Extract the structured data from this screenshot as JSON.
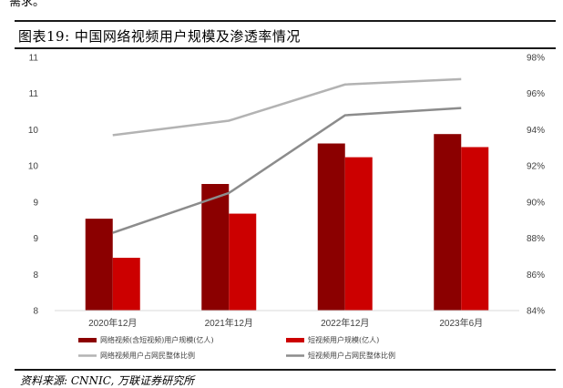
{
  "header": {
    "cut_text": "需求。",
    "title": "图表19: 中国网络视频用户规模及渗透率情况",
    "source": "资料来源: CNNIC, 万联证券研究所"
  },
  "colors": {
    "bar1": "#8b0000",
    "bar2": "#cc0000",
    "line1": "#b3b3b3",
    "line2": "#8c8c8c",
    "axis": "#d9d9d9"
  },
  "chart_data": {
    "type": "bar",
    "categories": [
      "2020年12月",
      "2021年12月",
      "2022年12月",
      "2023年6月"
    ],
    "left_axis_ticks": [
      "8",
      "8",
      "9",
      "9",
      "10",
      "10",
      "11",
      "11"
    ],
    "right_axis_ticks": [
      "84%",
      "86%",
      "88%",
      "90%",
      "92%",
      "94%",
      "96%",
      "98%"
    ],
    "ylim": [
      8,
      11.5
    ],
    "y2lim": [
      84,
      98
    ],
    "series": [
      {
        "name": "网络视频(含短视频)用户规模(亿人)",
        "kind": "bar",
        "axis": "left",
        "values": [
          9.27,
          9.75,
          10.31,
          10.44
        ]
      },
      {
        "name": "短视频用户规模(亿人)",
        "kind": "bar",
        "axis": "left",
        "values": [
          8.73,
          9.34,
          10.12,
          10.26
        ]
      },
      {
        "name": "网络视频用户占网民整体比例",
        "kind": "line",
        "axis": "right",
        "values": [
          93.7,
          94.5,
          96.5,
          96.8
        ]
      },
      {
        "name": "短视频用户占网民整体比例",
        "kind": "line",
        "axis": "right",
        "values": [
          88.3,
          90.5,
          94.8,
          95.2
        ]
      }
    ],
    "legend_position": "bottom",
    "grid": false
  }
}
